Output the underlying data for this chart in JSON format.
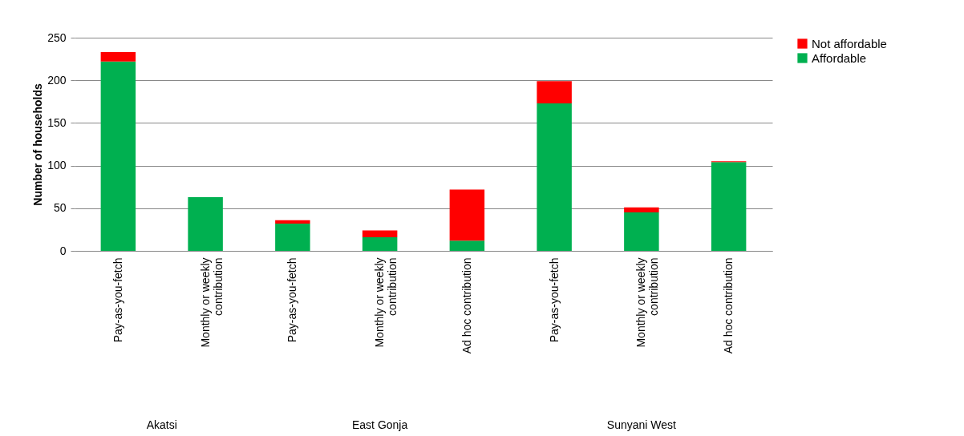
{
  "chart_data": {
    "type": "bar",
    "stacked": true,
    "ylabel": "Number of households",
    "categories": [
      "Pay-as-you-fetch",
      "Monthly or weekly contribution",
      "Pay-as-you-fetch",
      "Monthly or weekly contribution",
      "Ad hoc contribution",
      "Pay-as-you-fetch",
      "Monthly or weekly contribution",
      "Ad hoc contribution"
    ],
    "series": [
      {
        "name": "Affordable",
        "color": "#00b050",
        "values": [
          222,
          63,
          32,
          16,
          12,
          173,
          45,
          104
        ]
      },
      {
        "name": "Not affordable",
        "color": "#ff0000",
        "values": [
          11,
          0,
          4,
          8,
          60,
          26,
          6,
          1
        ]
      }
    ],
    "annotations": [
      "Akatsi",
      "East Gonja",
      "Sunyani West"
    ],
    "ylim": [
      0,
      250
    ],
    "yticks": [
      0,
      50,
      100,
      150,
      200,
      250
    ],
    "grid": "y",
    "legend": "right"
  }
}
